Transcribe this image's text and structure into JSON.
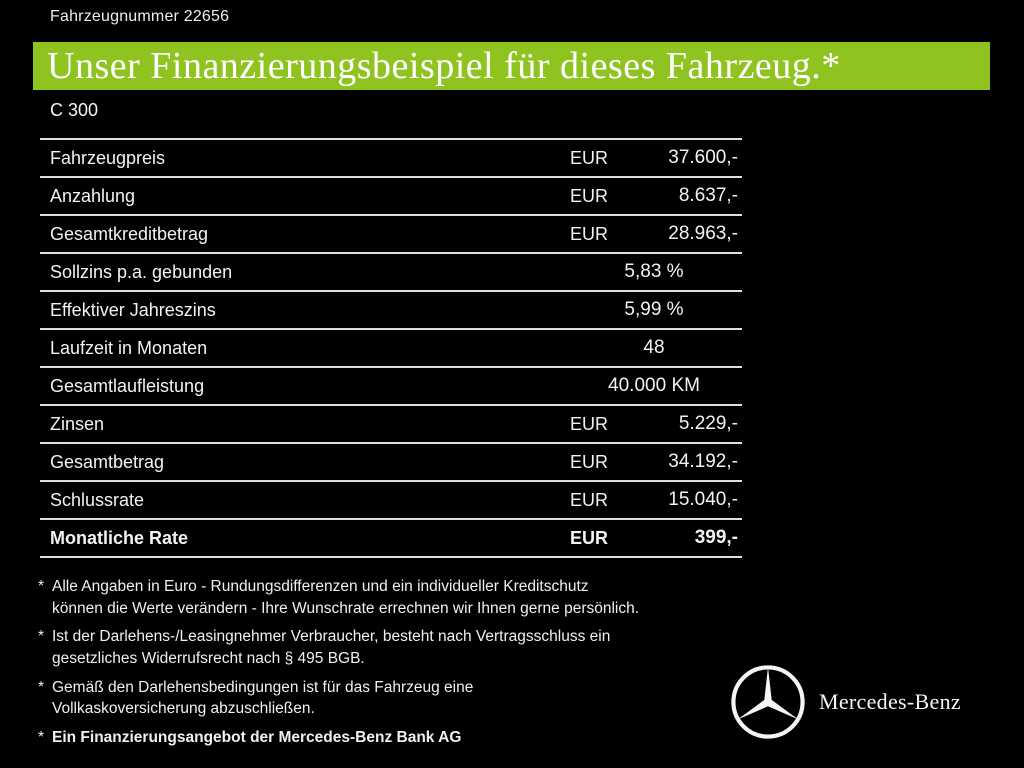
{
  "header": {
    "vehicle_number": "Fahrzeugnummer 22656",
    "title": "Unser Finanzierungsbeispiel für dieses Fahrzeug.*",
    "model": "C 300"
  },
  "table": {
    "rows": [
      {
        "label": "Fahrzeugpreis",
        "currency": "EUR",
        "value": "37.600,-",
        "bold": false
      },
      {
        "label": "Anzahlung",
        "currency": "EUR",
        "value": "8.637,-",
        "bold": false
      },
      {
        "label": "Gesamtkreditbetrag",
        "currency": "EUR",
        "value": "28.963,-",
        "bold": false
      },
      {
        "label": "Sollzins p.a. gebunden",
        "currency": "",
        "value": "5,83 %",
        "bold": false
      },
      {
        "label": "Effektiver Jahreszins",
        "currency": "",
        "value": "5,99 %",
        "bold": false
      },
      {
        "label": "Laufzeit in Monaten",
        "currency": "",
        "value": "48",
        "bold": false
      },
      {
        "label": "Gesamtlaufleistung",
        "currency": "",
        "value": "40.000 KM",
        "bold": false
      },
      {
        "label": "Zinsen",
        "currency": "EUR",
        "value": "5.229,-",
        "bold": false
      },
      {
        "label": "Gesamtbetrag",
        "currency": "EUR",
        "value": "34.192,-",
        "bold": false
      },
      {
        "label": "Schlussrate",
        "currency": "EUR",
        "value": "15.040,-",
        "bold": false
      },
      {
        "label": "Monatliche Rate",
        "currency": "EUR",
        "value": "399,-",
        "bold": true
      }
    ]
  },
  "footnotes": [
    {
      "marker": "*",
      "text": "Alle Angaben in Euro - Rundungsdifferenzen und ein individueller Kreditschutz\nkönnen die Werte verändern - Ihre Wunschrate errechnen wir Ihnen gerne persönlich.",
      "bold": false
    },
    {
      "marker": "*",
      "text": "Ist der Darlehens-/Leasingnehmer Verbraucher, besteht nach Vertragsschluss ein\ngesetzliches Widerrufsrecht nach § 495 BGB.",
      "bold": false
    },
    {
      "marker": "*",
      "text": "Gemäß den Darlehensbedingungen ist für das Fahrzeug eine\nVollkaskoversicherung abzuschließen.",
      "bold": false
    },
    {
      "marker": "*",
      "text": "Ein Finanzierungsangebot der Mercedes-Benz Bank AG",
      "bold": true
    }
  ],
  "brand": {
    "logo_icon": "mercedes-star-icon",
    "wordmark": "Mercedes-Benz"
  },
  "colors": {
    "background": "#000000",
    "accent_green": "#8ec320",
    "text": "#f2f2f2",
    "divider": "#dedede"
  }
}
